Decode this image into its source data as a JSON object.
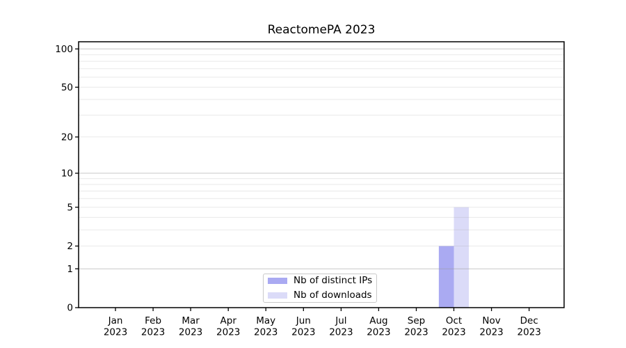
{
  "title": "ReactomePA 2023",
  "chart_data": {
    "type": "bar",
    "title": "ReactomePA 2023",
    "categories": [
      "Jan 2023",
      "Feb 2023",
      "Mar 2023",
      "Apr 2023",
      "May 2023",
      "Jun 2023",
      "Jul 2023",
      "Aug 2023",
      "Sep 2023",
      "Oct 2023",
      "Nov 2023",
      "Dec 2023"
    ],
    "series": [
      {
        "name": "Nb of distinct IPs",
        "color": "#aaaaf2",
        "values": [
          0,
          0,
          0,
          0,
          0,
          0,
          0,
          0,
          0,
          2,
          0,
          0
        ]
      },
      {
        "name": "Nb of downloads",
        "color": "#dbdbf8",
        "values": [
          0,
          0,
          0,
          0,
          0,
          0,
          0,
          0,
          0,
          5,
          0,
          0
        ]
      }
    ],
    "y_scale": "log1p",
    "ylim": [
      0,
      113
    ],
    "y_tick_values": [
      0,
      1,
      2,
      5,
      10,
      20,
      50,
      100
    ],
    "y_major_gridlines": [
      1,
      10,
      100
    ],
    "y_minor_gridlines": [
      2,
      3,
      4,
      5,
      6,
      7,
      8,
      9,
      20,
      30,
      40,
      50,
      60,
      70,
      80,
      90
    ],
    "xlabel": "",
    "ylabel": "",
    "grid": "horizontal",
    "legend_position": "lower center"
  },
  "legend": {
    "items": [
      {
        "label": "Nb of distinct IPs",
        "color": "#aaaaf2"
      },
      {
        "label": "Nb of downloads",
        "color": "#dbdbf8"
      }
    ]
  },
  "colors": {
    "background": "#ffffff",
    "axis": "#000000",
    "text": "#000000",
    "major_grid": "#c8c8c8",
    "minor_grid": "#ebebeb",
    "legend_border": "#c9c9c9"
  }
}
